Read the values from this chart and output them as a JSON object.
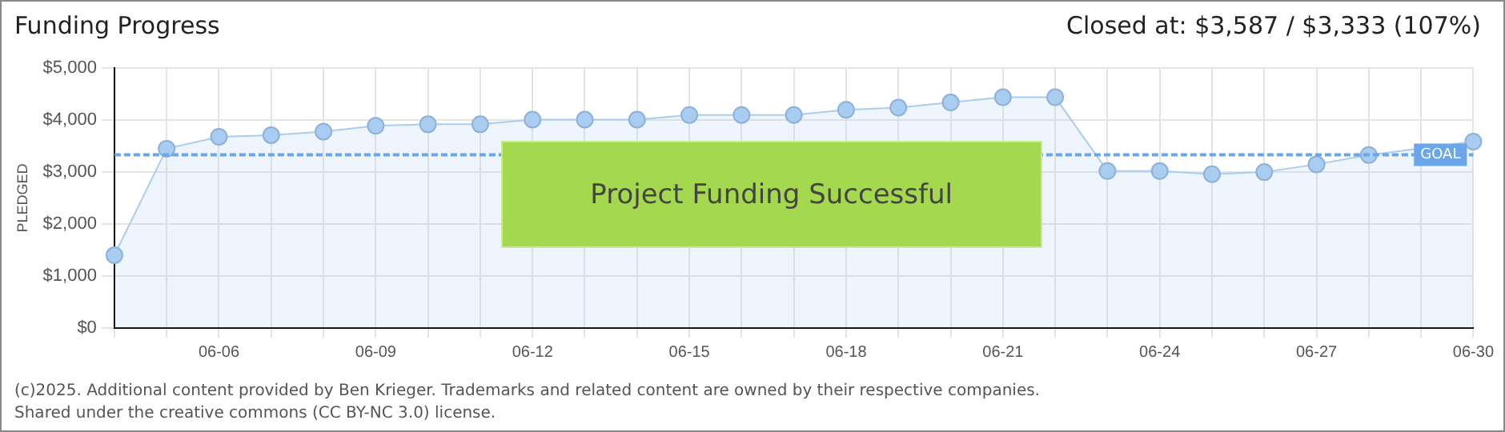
{
  "chart_data": {
    "type": "area",
    "title": "Funding Progress",
    "subtitle": "Closed at: $3,587 / $3,333 (107%)",
    "ylabel": "PLEDGED",
    "categories": [
      null,
      null,
      "06-06",
      null,
      null,
      "06-09",
      null,
      null,
      "06-12",
      null,
      null,
      "06-15",
      null,
      null,
      "06-18",
      null,
      null,
      "06-21",
      null,
      null,
      "06-24",
      null,
      null,
      "06-27",
      null,
      null,
      "06-30"
    ],
    "series": [
      {
        "color": "#a9cdf0",
        "values": [
          1400,
          3450,
          3680,
          3710,
          3780,
          3890,
          3920,
          3920,
          4010,
          4010,
          4010,
          4100,
          4100,
          4100,
          4200,
          4240,
          4340,
          4440,
          4440,
          3020,
          3020,
          2960,
          3000,
          3150,
          3330,
          null,
          3587
        ]
      }
    ],
    "ylim": [
      0,
      5000
    ],
    "yticks": [
      {
        "value": 0,
        "label": "$0"
      },
      {
        "value": 1000,
        "label": "$1,000"
      },
      {
        "value": 2000,
        "label": "$2,000"
      },
      {
        "value": 3000,
        "label": "$3,000"
      },
      {
        "value": 4000,
        "label": "$4,000"
      },
      {
        "value": 5000,
        "label": "$5,000"
      }
    ],
    "ref_lines": [
      {
        "axis": "y",
        "value": 3333,
        "label": "GOAL",
        "color": "#6aa6e8",
        "line_style": "dashed"
      }
    ],
    "annotations": [
      "Project Funding Successful",
      "(c)2025. Additional content provided by Ben Krieger. Trademarks and related content are owned by their respective companies.",
      "Shared under the creative commons (CC BY-NC 3.0) license."
    ],
    "grid": true,
    "marker": "circle",
    "legend": false
  }
}
